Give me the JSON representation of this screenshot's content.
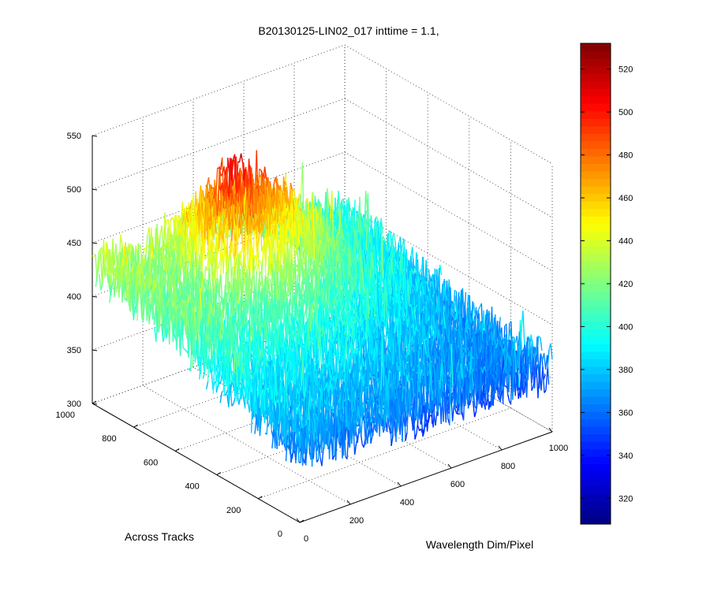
{
  "chart_data": {
    "type": "surface3d",
    "title": "B20130125-LIN02_017 inttime = 1.1,",
    "xlabel": "Wavelength Dim/Pixel",
    "ylabel": "Across Tracks",
    "zlabel": "",
    "xlim": [
      0,
      1000
    ],
    "ylim": [
      0,
      1000
    ],
    "zlim": [
      300,
      550
    ],
    "x_ticks": [
      "0",
      "200",
      "400",
      "600",
      "800",
      "1000"
    ],
    "y_ticks": [
      "0",
      "200",
      "400",
      "600",
      "800",
      "1000"
    ],
    "z_ticks": [
      "300",
      "350",
      "400",
      "450",
      "500",
      "550"
    ],
    "colorbar": {
      "colormap": "jet",
      "clim": [
        308,
        532
      ],
      "ticks": [
        "320",
        "340",
        "360",
        "380",
        "400",
        "420",
        "440",
        "460",
        "480",
        "500",
        "520"
      ]
    },
    "grid": true,
    "surface_samples": {
      "note_x_values": [
        0,
        200,
        400,
        600,
        800,
        1000
      ],
      "rows": [
        {
          "y": 1000,
          "z": [
            430,
            420,
            440,
            430,
            405,
            390
          ]
        },
        {
          "y": 800,
          "z": [
            420,
            415,
            500,
            460,
            400,
            385
          ]
        },
        {
          "y": 600,
          "z": [
            410,
            405,
            420,
            410,
            390,
            375
          ]
        },
        {
          "y": 400,
          "z": [
            395,
            390,
            390,
            385,
            375,
            365
          ]
        },
        {
          "y": 200,
          "z": [
            380,
            375,
            375,
            370,
            365,
            360
          ]
        },
        {
          "y": 0,
          "z": [
            370,
            365,
            365,
            360,
            360,
            360
          ]
        }
      ]
    },
    "noise_amplitude": 25
  }
}
